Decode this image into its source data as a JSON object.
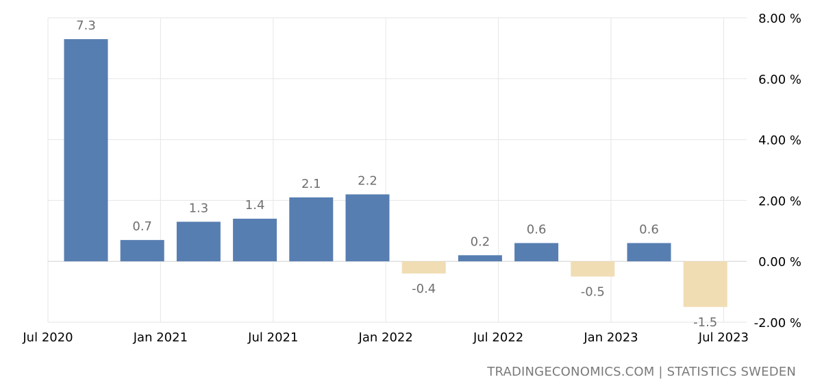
{
  "chart_data": {
    "type": "bar",
    "categories": [
      "Q3 2020",
      "Q4 2020",
      "Q1 2021",
      "Q2 2021",
      "Q3 2021",
      "Q4 2021",
      "Q1 2022",
      "Q2 2022",
      "Q3 2022",
      "Q4 2022",
      "Q1 2023",
      "Q2 2023"
    ],
    "values": [
      7.3,
      0.7,
      1.3,
      1.4,
      2.1,
      2.2,
      -0.4,
      0.2,
      0.6,
      -0.5,
      0.6,
      -1.5
    ],
    "data_labels": [
      "7.3",
      "0.7",
      "1.3",
      "1.4",
      "2.1",
      "2.2",
      "-0.4",
      "0.2",
      "0.6",
      "-0.5",
      "0.6",
      "-1.5"
    ],
    "x_tick_labels": [
      "Jul 2020",
      "Jan 2021",
      "Jul 2021",
      "Jan 2022",
      "Jul 2022",
      "Jan 2023",
      "Jul 2023"
    ],
    "y_ticks": [
      8,
      6,
      4,
      2,
      0,
      -2
    ],
    "y_tick_labels": [
      "8.00 %",
      "6.00 %",
      "4.00 %",
      "2.00 %",
      "0.00 %",
      "-2.00 %"
    ],
    "ylim": [
      -2,
      8
    ],
    "y_axis_position": "right",
    "grid": true,
    "legend": "none",
    "colors": {
      "positive": "#577eb1",
      "negative": "#f0ddb4"
    }
  },
  "source": "TRADINGECONOMICS.COM | STATISTICS SWEDEN"
}
